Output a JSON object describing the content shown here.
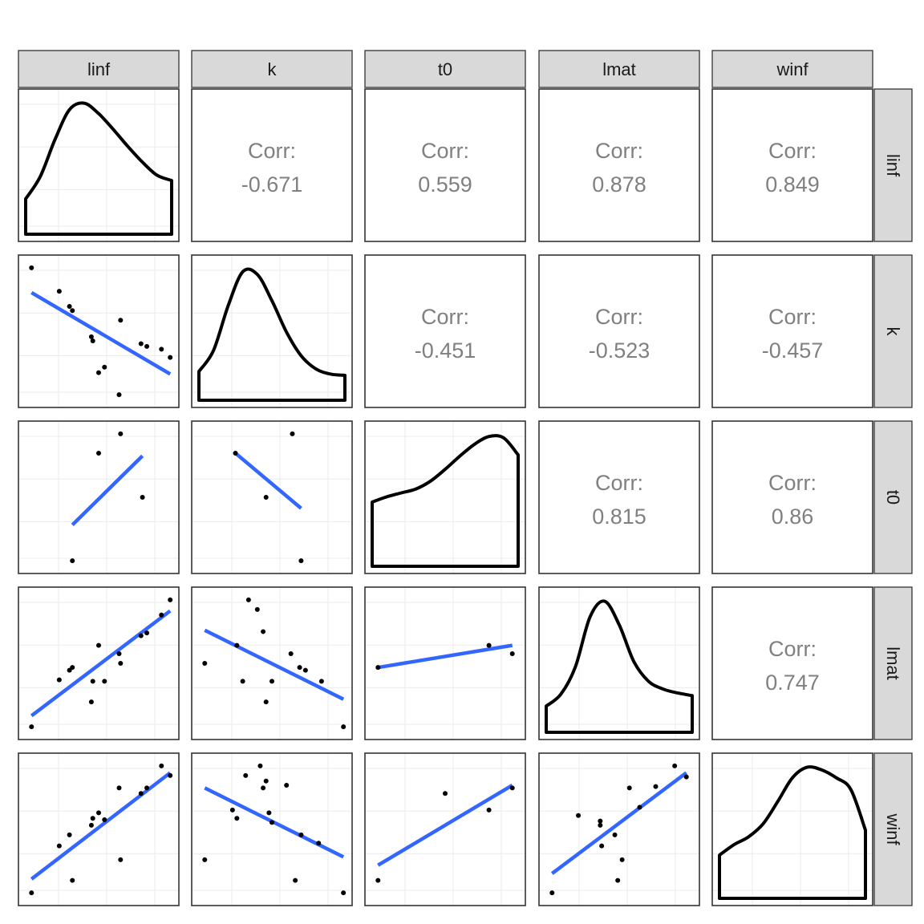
{
  "variables": [
    "linf",
    "k",
    "t0",
    "lmat",
    "winf"
  ],
  "colors": {
    "strip_fill": "#d9d9d9",
    "panel_border": "#333333",
    "grid": "#ebebeb",
    "fit_line": "#3366ff",
    "density": "#000000",
    "corr_text": "#808080",
    "points": "#000000"
  },
  "chart_data": {
    "type": "scatter",
    "layout": "pairs-matrix",
    "variables": [
      "linf",
      "k",
      "t0",
      "lmat",
      "winf"
    ],
    "grid": true,
    "correlations": [
      {
        "row": "k",
        "col": "linf",
        "label": "Corr:",
        "value": "-0.671"
      },
      {
        "row": "t0",
        "col": "linf",
        "label": "Corr:",
        "value": "0.559"
      },
      {
        "row": "lmat",
        "col": "linf",
        "label": "Corr:",
        "value": "0.878"
      },
      {
        "row": "winf",
        "col": "linf",
        "label": "Corr:",
        "value": "0.849"
      },
      {
        "row": "t0",
        "col": "k",
        "label": "Corr:",
        "value": "-0.451"
      },
      {
        "row": "lmat",
        "col": "k",
        "label": "Corr:",
        "value": "-0.523"
      },
      {
        "row": "winf",
        "col": "k",
        "label": "Corr:",
        "value": "-0.457"
      },
      {
        "row": "lmat",
        "col": "t0",
        "label": "Corr:",
        "value": "0.815"
      },
      {
        "row": "winf",
        "col": "t0",
        "label": "Corr:",
        "value": "0.86"
      },
      {
        "row": "winf",
        "col": "lmat",
        "label": "Corr:",
        "value": "0.747"
      }
    ],
    "densities": [
      {
        "variable": "linf",
        "x": [
          0,
          0.1,
          0.2,
          0.3,
          0.4,
          0.5,
          0.6,
          0.7,
          0.8,
          0.9,
          1
        ],
        "y": [
          0.27,
          0.44,
          0.72,
          0.95,
          1.0,
          0.92,
          0.8,
          0.67,
          0.55,
          0.45,
          0.41
        ]
      },
      {
        "variable": "k",
        "x": [
          0,
          0.1,
          0.2,
          0.3,
          0.4,
          0.5,
          0.6,
          0.7,
          0.8,
          0.9,
          1
        ],
        "y": [
          0.22,
          0.38,
          0.72,
          0.98,
          0.96,
          0.76,
          0.52,
          0.34,
          0.24,
          0.2,
          0.19
        ]
      },
      {
        "variable": "t0",
        "x": [
          0,
          0.1,
          0.2,
          0.3,
          0.4,
          0.5,
          0.6,
          0.7,
          0.8,
          0.9,
          1
        ],
        "y": [
          0.49,
          0.53,
          0.56,
          0.59,
          0.65,
          0.74,
          0.84,
          0.93,
          0.99,
          0.98,
          0.85
        ]
      },
      {
        "variable": "lmat",
        "x": [
          0,
          0.1,
          0.2,
          0.3,
          0.4,
          0.5,
          0.6,
          0.7,
          0.8,
          0.9,
          1
        ],
        "y": [
          0.2,
          0.29,
          0.5,
          0.88,
          1.0,
          0.82,
          0.54,
          0.39,
          0.33,
          0.3,
          0.28
        ]
      },
      {
        "variable": "winf",
        "x": [
          0,
          0.1,
          0.2,
          0.3,
          0.4,
          0.5,
          0.6,
          0.7,
          0.8,
          0.9,
          1
        ],
        "y": [
          0.33,
          0.41,
          0.47,
          0.57,
          0.74,
          0.92,
          1.0,
          0.98,
          0.92,
          0.83,
          0.52
        ]
      }
    ],
    "scatter_panels": [
      {
        "row": "k",
        "col": "linf",
        "points": [
          [
            0.04,
            0.96
          ],
          [
            0.23,
            0.79
          ],
          [
            0.3,
            0.68
          ],
          [
            0.32,
            0.65
          ],
          [
            0.45,
            0.46
          ],
          [
            0.46,
            0.43
          ],
          [
            0.5,
            0.2
          ],
          [
            0.54,
            0.24
          ],
          [
            0.65,
            0.58
          ],
          [
            0.64,
            0.04
          ],
          [
            0.79,
            0.41
          ],
          [
            0.83,
            0.39
          ],
          [
            0.93,
            0.37
          ],
          [
            0.99,
            0.31
          ]
        ],
        "fit": [
          [
            0.04,
            0.78
          ],
          [
            0.99,
            0.19
          ]
        ]
      },
      {
        "row": "t0",
        "col": "linf",
        "points": [
          [
            0.5,
            0.82
          ],
          [
            0.65,
            0.96
          ],
          [
            0.8,
            0.5
          ],
          [
            0.32,
            0.04
          ]
        ],
        "fit": [
          [
            0.32,
            0.3
          ],
          [
            0.8,
            0.8
          ]
        ]
      },
      {
        "row": "lmat",
        "col": "linf",
        "points": [
          [
            0.04,
            0.04
          ],
          [
            0.23,
            0.38
          ],
          [
            0.3,
            0.45
          ],
          [
            0.32,
            0.47
          ],
          [
            0.45,
            0.22
          ],
          [
            0.46,
            0.37
          ],
          [
            0.5,
            0.63
          ],
          [
            0.54,
            0.37
          ],
          [
            0.65,
            0.5
          ],
          [
            0.64,
            0.57
          ],
          [
            0.79,
            0.7
          ],
          [
            0.83,
            0.72
          ],
          [
            0.93,
            0.85
          ],
          [
            0.99,
            0.96
          ]
        ],
        "fit": [
          [
            0.04,
            0.12
          ],
          [
            0.99,
            0.88
          ]
        ]
      },
      {
        "row": "winf",
        "col": "linf",
        "points": [
          [
            0.04,
            0.04
          ],
          [
            0.23,
            0.38
          ],
          [
            0.3,
            0.46
          ],
          [
            0.32,
            0.13
          ],
          [
            0.45,
            0.53
          ],
          [
            0.46,
            0.58
          ],
          [
            0.5,
            0.62
          ],
          [
            0.54,
            0.57
          ],
          [
            0.65,
            0.28
          ],
          [
            0.64,
            0.8
          ],
          [
            0.79,
            0.76
          ],
          [
            0.83,
            0.8
          ],
          [
            0.93,
            0.96
          ],
          [
            0.99,
            0.89
          ]
        ],
        "fit": [
          [
            0.04,
            0.14
          ],
          [
            0.99,
            0.91
          ]
        ]
      },
      {
        "row": "t0",
        "col": "k",
        "points": [
          [
            0.25,
            0.82
          ],
          [
            0.46,
            0.5
          ],
          [
            0.64,
            0.96
          ],
          [
            0.7,
            0.04
          ]
        ],
        "fit": [
          [
            0.25,
            0.82
          ],
          [
            0.7,
            0.42
          ]
        ]
      },
      {
        "row": "lmat",
        "col": "k",
        "points": [
          [
            0.04,
            0.5
          ],
          [
            0.26,
            0.63
          ],
          [
            0.3,
            0.37
          ],
          [
            0.34,
            0.96
          ],
          [
            0.4,
            0.89
          ],
          [
            0.44,
            0.73
          ],
          [
            0.46,
            0.22
          ],
          [
            0.5,
            0.37
          ],
          [
            0.63,
            0.57
          ],
          [
            0.69,
            0.47
          ],
          [
            0.73,
            0.45
          ],
          [
            0.84,
            0.37
          ],
          [
            0.99,
            0.04
          ]
        ],
        "fit": [
          [
            0.04,
            0.74
          ],
          [
            0.99,
            0.24
          ]
        ]
      },
      {
        "row": "winf",
        "col": "k",
        "points": [
          [
            0.04,
            0.28
          ],
          [
            0.23,
            0.64
          ],
          [
            0.26,
            0.58
          ],
          [
            0.32,
            0.89
          ],
          [
            0.42,
            0.96
          ],
          [
            0.44,
            0.8
          ],
          [
            0.46,
            0.85
          ],
          [
            0.48,
            0.62
          ],
          [
            0.5,
            0.55
          ],
          [
            0.6,
            0.82
          ],
          [
            0.66,
            0.13
          ],
          [
            0.7,
            0.46
          ],
          [
            0.82,
            0.4
          ],
          [
            0.99,
            0.04
          ]
        ],
        "fit": [
          [
            0.04,
            0.8
          ],
          [
            0.99,
            0.3
          ]
        ]
      },
      {
        "row": "lmat",
        "col": "t0",
        "points": [
          [
            0.04,
            0.47
          ],
          [
            0.8,
            0.63
          ],
          [
            0.96,
            0.57
          ]
        ],
        "fit": [
          [
            0.04,
            0.47
          ],
          [
            0.96,
            0.63
          ]
        ]
      },
      {
        "row": "winf",
        "col": "t0",
        "points": [
          [
            0.04,
            0.13
          ],
          [
            0.5,
            0.76
          ],
          [
            0.8,
            0.64
          ],
          [
            0.96,
            0.8
          ]
        ],
        "fit": [
          [
            0.04,
            0.24
          ],
          [
            0.96,
            0.82
          ]
        ]
      },
      {
        "row": "winf",
        "col": "lmat",
        "points": [
          [
            0.04,
            0.04
          ],
          [
            0.22,
            0.6
          ],
          [
            0.37,
            0.56
          ],
          [
            0.37,
            0.53
          ],
          [
            0.38,
            0.38
          ],
          [
            0.47,
            0.46
          ],
          [
            0.49,
            0.13
          ],
          [
            0.52,
            0.28
          ],
          [
            0.57,
            0.8
          ],
          [
            0.64,
            0.66
          ],
          [
            0.75,
            0.81
          ],
          [
            0.88,
            0.96
          ],
          [
            0.96,
            0.88
          ]
        ],
        "fit": [
          [
            0.04,
            0.18
          ],
          [
            0.96,
            0.91
          ]
        ]
      }
    ]
  }
}
